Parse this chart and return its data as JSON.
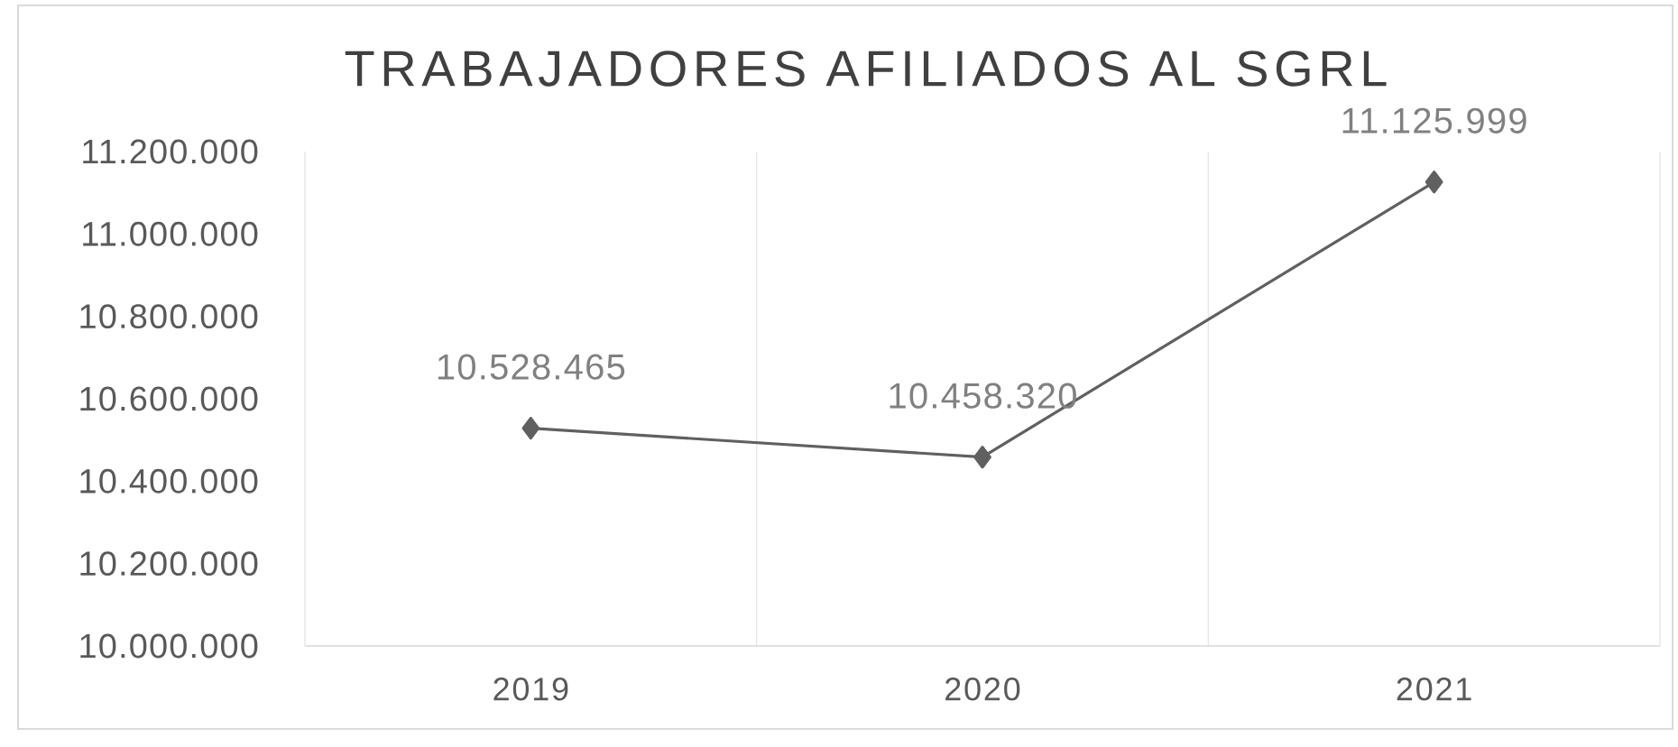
{
  "chart_data": {
    "type": "line",
    "title": "TRABAJADORES AFILIADOS AL SGRL",
    "categories": [
      "2019",
      "2020",
      "2021"
    ],
    "values": [
      10528465,
      10458320,
      11125999
    ],
    "value_labels": [
      "10.528.465",
      "10.458.320",
      "11.125.999"
    ],
    "color": "#606060",
    "ylim": [
      10000000,
      11200000
    ],
    "yticks": [
      {
        "value": 10000000,
        "label": "10.000.000"
      },
      {
        "value": 10200000,
        "label": "10.200.000"
      },
      {
        "value": 10400000,
        "label": "10.400.000"
      },
      {
        "value": 10600000,
        "label": "10.600.000"
      },
      {
        "value": 10800000,
        "label": "10.800.000"
      },
      {
        "value": 11000000,
        "label": "11.000.000"
      },
      {
        "value": 11200000,
        "label": "11.200.000"
      }
    ],
    "grid": "x",
    "marker": "diamond",
    "line_style": "solid"
  }
}
